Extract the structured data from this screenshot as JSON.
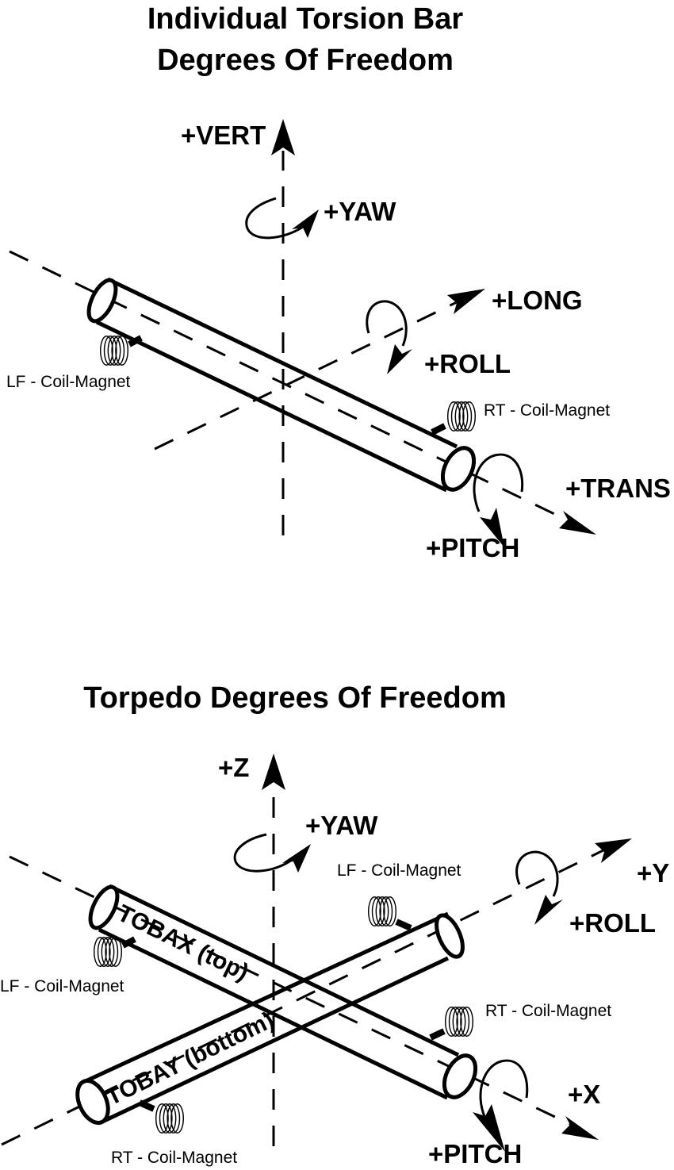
{
  "top_diagram": {
    "title_line1": "Individual Torsion Bar",
    "title_line2": "Degrees Of Freedom",
    "axes": {
      "vert": "+VERT",
      "yaw": "+YAW",
      "long": "+LONG",
      "roll": "+ROLL",
      "trans": "+TRANS",
      "pitch": "+PITCH"
    },
    "coils": {
      "lf": "LF - Coil-Magnet",
      "rt": "RT - Coil-Magnet"
    }
  },
  "bottom_diagram": {
    "title": "Torpedo Degrees Of Freedom",
    "axes": {
      "z": "+Z",
      "yaw": "+YAW",
      "y": "+Y",
      "roll": "+ROLL",
      "x": "+X",
      "pitch": "+PITCH"
    },
    "bars": {
      "top": "TOBAX (top)",
      "bottom": "TOBAY (bottom)"
    },
    "coils": {
      "lf_top": "LF - Coil-Magnet",
      "lf_left": "LF - Coil-Magnet",
      "rt_right": "RT - Coil-Magnet",
      "rt_bottom": "RT - Coil-Magnet"
    }
  }
}
